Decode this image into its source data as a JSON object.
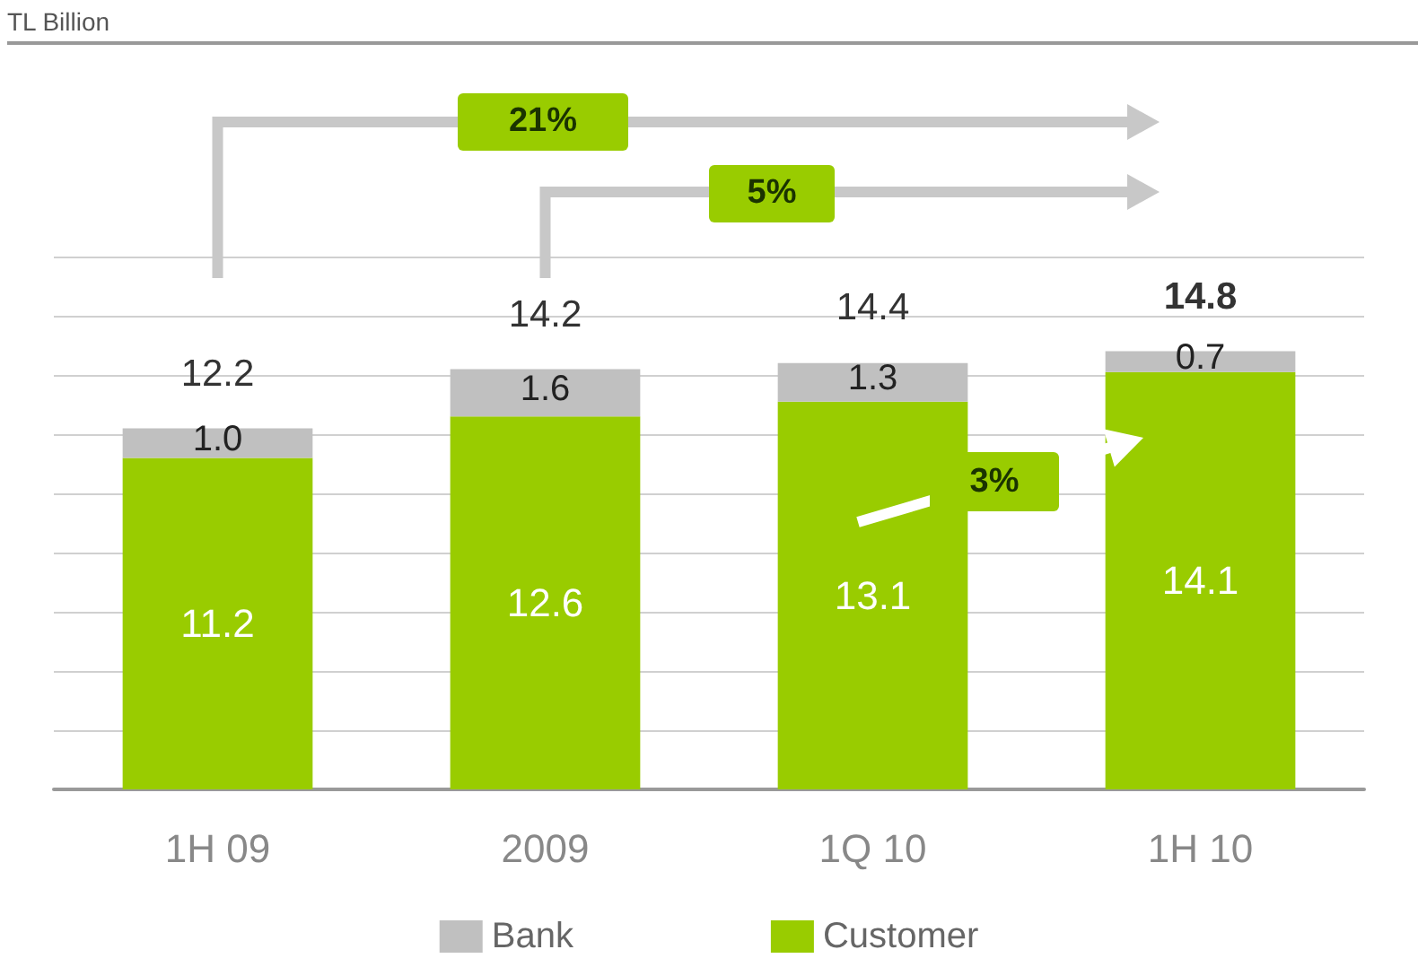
{
  "chart_data": {
    "type": "bar",
    "stacked": true,
    "categories": [
      "1H 09",
      "2009",
      "1Q 10",
      "1H 10"
    ],
    "series": [
      {
        "name": "Customer",
        "color": "#99cc00",
        "values": [
          11.2,
          12.6,
          13.1,
          14.1
        ],
        "value_labels": [
          "11.2",
          "12.6",
          "13.1",
          "14.1"
        ]
      },
      {
        "name": "Bank",
        "color": "#c0c0c0",
        "values": [
          1.0,
          1.6,
          1.3,
          0.7
        ],
        "value_labels": [
          "1.0",
          "1.6",
          "1.3",
          "0.7"
        ]
      }
    ],
    "totals": [
      "12.2",
      "14.2",
      "14.4",
      "14.8"
    ],
    "ylim": [
      0,
      18
    ],
    "yticks": [
      {
        "value": 0,
        "label": null
      },
      {
        "value": 2,
        "label": null
      },
      {
        "value": 4,
        "label": null
      },
      {
        "value": 6,
        "label": null
      },
      {
        "value": 8,
        "label": null
      },
      {
        "value": 10,
        "label": null
      },
      {
        "value": 12,
        "label": null
      },
      {
        "value": 14,
        "label": null
      },
      {
        "value": 16,
        "label": null
      },
      {
        "value": 18,
        "label": null
      }
    ],
    "tick_labels": "x",
    "grid": "y",
    "legend": "bottom",
    "annotations": [
      "TL Billion",
      "21%",
      "5%",
      "3%"
    ]
  }
}
